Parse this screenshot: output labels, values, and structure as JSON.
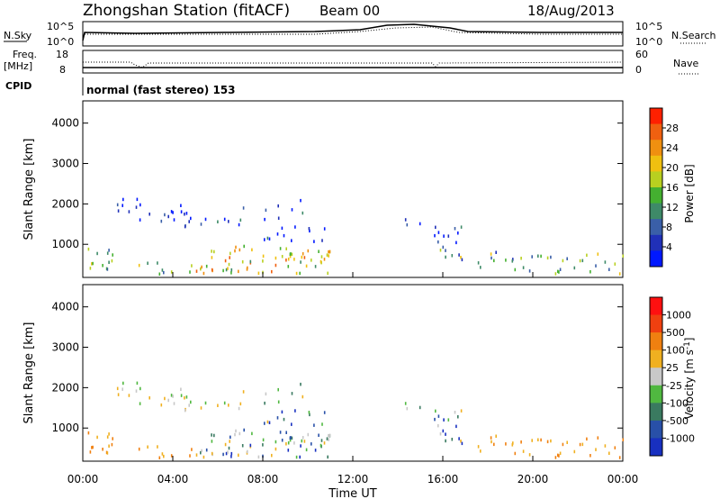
{
  "header": {
    "station": "Zhongshan Station (fitACF)",
    "beam": "Beam 00",
    "date": "18/Aug/2013"
  },
  "top_panels": {
    "nsky_label": "N.Sky",
    "nsky_ticks": [
      "10^5",
      "10^0"
    ],
    "nsearch_label": "N.Search",
    "nsearch_ticks": [
      "10^5",
      "10^0"
    ],
    "freq_label_1": "Freq.",
    "freq_label_2": "[MHz]",
    "freq_ticks": [
      "18",
      "8"
    ],
    "nave_label": "Nave",
    "nave_ticks": [
      "60",
      "0"
    ],
    "cpid_label": "CPID",
    "cpid_text": "normal (fast stereo) 153"
  },
  "chart_data": [
    {
      "type": "heatmap",
      "name": "Power",
      "ylabel": "Slant Range [km]",
      "xlabel": "",
      "ylim": [
        180,
        4550
      ],
      "yticks": [
        "1000",
        "2000",
        "3000",
        "4000"
      ],
      "colorbar_label": "Power [dB]",
      "colorbar_ticks": [
        "4",
        "8",
        "12",
        "16",
        "20",
        "24",
        "28"
      ],
      "colorbar_colors": [
        "#0018ff",
        "#2030b8",
        "#3a5fa8",
        "#3e8a68",
        "#44b030",
        "#b8d020",
        "#f0c010",
        "#f09010",
        "#f06010",
        "#ff2000"
      ]
    },
    {
      "type": "heatmap",
      "name": "Velocity",
      "ylabel": "Slant Range [km]",
      "xlabel": "Time UT",
      "ylim": [
        180,
        4550
      ],
      "yticks": [
        "1000",
        "2000",
        "3000",
        "4000"
      ],
      "xticks": [
        "00:00",
        "04:00",
        "08:00",
        "12:00",
        "16:00",
        "20:00",
        "00:00"
      ],
      "colorbar_label": "Velocity [m s^-1]",
      "colorbar_ticks": [
        "1000",
        "500",
        "100",
        "25",
        "-25",
        "-100",
        "-500",
        "-1000"
      ],
      "colorbar_colors": [
        "#1830c0",
        "#2850a8",
        "#3a7a60",
        "#50b840",
        "#c8c8c8",
        "#f0b020",
        "#f08010",
        "#f04010",
        "#ff1010"
      ]
    }
  ]
}
